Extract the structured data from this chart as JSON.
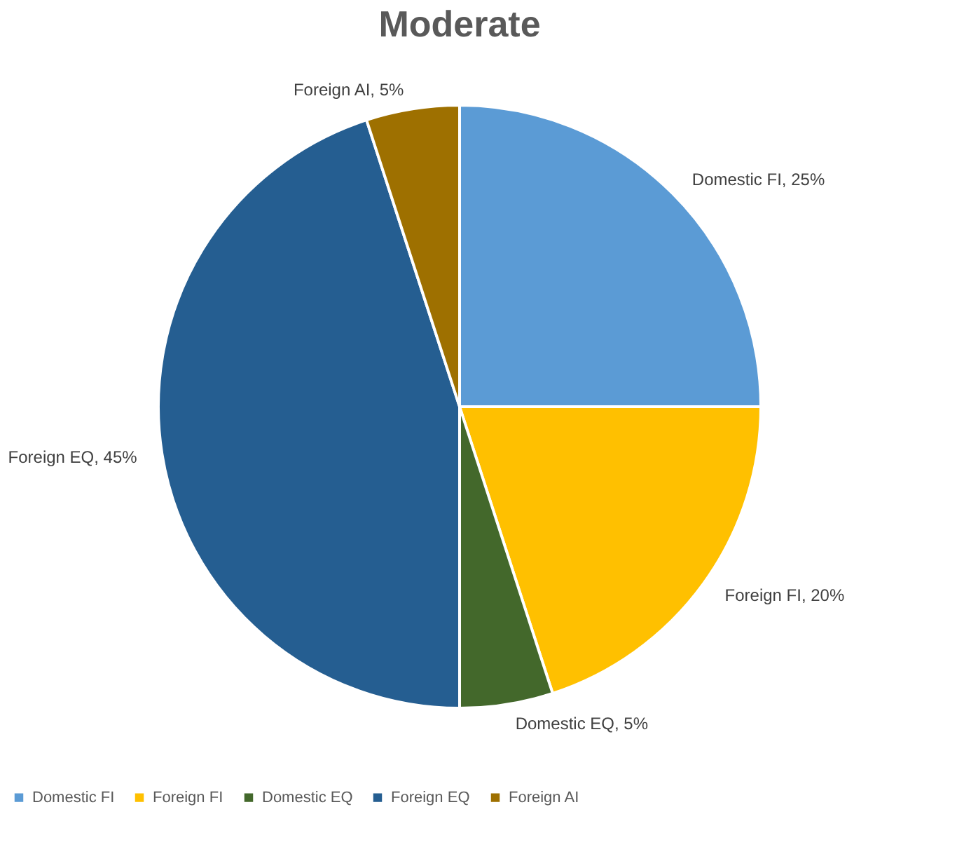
{
  "chart_data": {
    "type": "pie",
    "title": "Moderate",
    "categories": [
      "Domestic FI",
      "Foreign FI",
      "Domestic EQ",
      "Foreign EQ",
      "Foreign AI"
    ],
    "values": [
      25,
      20,
      5,
      45,
      5
    ],
    "colors": [
      "#5b9bd5",
      "#ffc000",
      "#43682b",
      "#255e91",
      "#9e7000"
    ],
    "value_labels": [
      "Domestic FI, 25%",
      "Foreign FI, 20%",
      "Domestic EQ, 5%",
      "Foreign EQ, 45%",
      "Foreign AI, 5%"
    ],
    "legend": "bottom"
  }
}
